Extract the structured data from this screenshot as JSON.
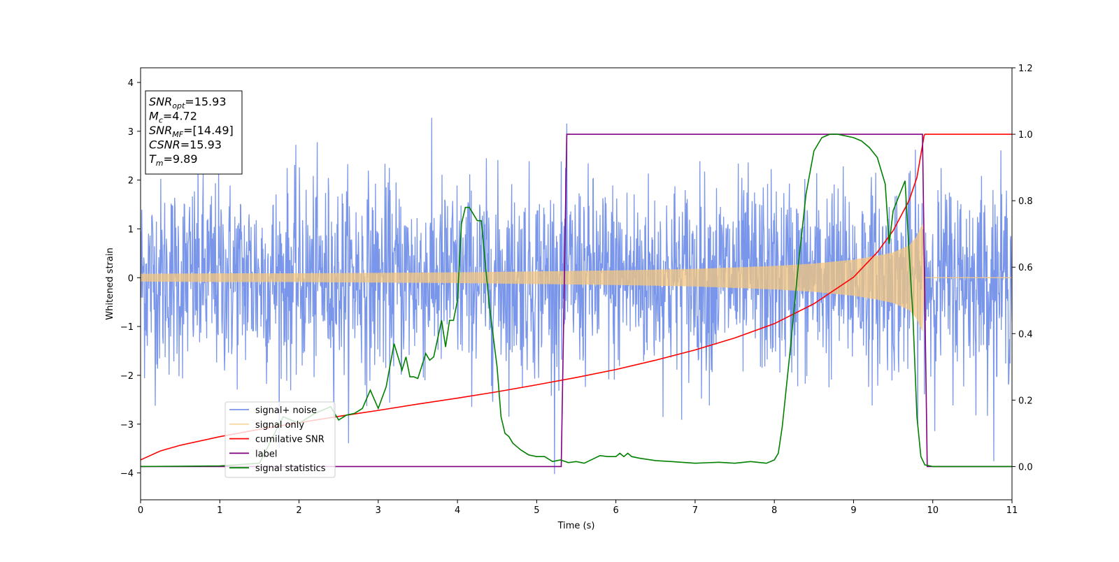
{
  "chart_data": {
    "type": "line",
    "xlabel": "Time (s)",
    "ylabel": "Whitened strain",
    "xlim": [
      0,
      11
    ],
    "ylim_left": [
      -4.55,
      4.3
    ],
    "ylim_right": [
      -0.1,
      1.2
    ],
    "x_ticks": [
      0,
      1,
      2,
      3,
      4,
      5,
      6,
      7,
      8,
      9,
      10,
      11
    ],
    "y_ticks_left": [
      -4,
      -3,
      -2,
      -1,
      0,
      1,
      2,
      3,
      4
    ],
    "y_ticks_left_labels": [
      "−4",
      "−3",
      "−2",
      "−1",
      "0",
      "1",
      "2",
      "3",
      "4"
    ],
    "y_ticks_right": [
      0.0,
      0.2,
      0.4,
      0.6,
      0.8,
      1.0,
      1.2
    ],
    "y_ticks_right_labels": [
      "0.0",
      "0.2",
      "0.4",
      "0.6",
      "0.8",
      "1.0",
      "1.2"
    ],
    "grid": false,
    "legend_placement": "lower-left",
    "annotation": {
      "lines": [
        {
          "name": "SNR",
          "sub": "opt",
          "value": "=15.93"
        },
        {
          "name": "M",
          "sub": "c",
          "value": "=4.72"
        },
        {
          "name": "SNR",
          "sub": "MF",
          "value": "=[14.49]"
        },
        {
          "name": "CSNR",
          "sub": "",
          "value": "=15.93"
        },
        {
          "name": "T",
          "sub": "m",
          "value": "=9.89"
        }
      ]
    },
    "series": [
      {
        "name": "signal+ noise",
        "axis": "left",
        "color": "#4169e1",
        "kind": "noise",
        "noise_sigma": 1.0,
        "x_range": [
          0,
          11
        ]
      },
      {
        "name": "signal only",
        "axis": "left",
        "color": "#f5c77e",
        "kind": "chirp",
        "envelope": {
          "x": [
            0,
            1,
            2,
            3,
            4,
            5,
            6,
            7,
            8,
            8.5,
            9,
            9.3,
            9.5,
            9.7,
            9.8,
            9.85,
            9.89,
            9.9,
            11
          ],
          "y": [
            0.08,
            0.09,
            0.09,
            0.1,
            0.11,
            0.13,
            0.15,
            0.18,
            0.24,
            0.29,
            0.37,
            0.45,
            0.52,
            0.66,
            0.85,
            1.05,
            1.15,
            0,
            0
          ]
        }
      },
      {
        "name": "cumilative SNR",
        "axis": "right",
        "color": "#ff0000",
        "x": [
          0,
          0.25,
          0.5,
          1,
          1.5,
          2,
          2.5,
          3,
          3.5,
          4,
          4.5,
          5,
          5.5,
          6,
          6.5,
          7,
          7.5,
          8,
          8.5,
          9,
          9.3,
          9.5,
          9.7,
          9.8,
          9.89,
          9.9,
          11
        ],
        "y": [
          0.02,
          0.047,
          0.064,
          0.09,
          0.112,
          0.132,
          0.151,
          0.169,
          0.188,
          0.206,
          0.225,
          0.246,
          0.268,
          0.292,
          0.32,
          0.351,
          0.387,
          0.43,
          0.49,
          0.57,
          0.645,
          0.71,
          0.8,
          0.87,
          0.995,
          1.0,
          1.0
        ]
      },
      {
        "name": "label",
        "axis": "right",
        "color": "#800080",
        "x": [
          0,
          5.31,
          5.38,
          9.87,
          9.93,
          11
        ],
        "y": [
          0,
          0,
          1,
          1,
          0,
          0
        ]
      },
      {
        "name": "signal statistics",
        "axis": "right",
        "color": "#008000",
        "x": [
          0,
          1.0,
          1.5,
          1.8,
          2.0,
          2.2,
          2.4,
          2.5,
          2.6,
          2.7,
          2.8,
          2.9,
          3.0,
          3.1,
          3.2,
          3.3,
          3.35,
          3.4,
          3.45,
          3.5,
          3.6,
          3.65,
          3.7,
          3.8,
          3.85,
          3.9,
          3.95,
          4.0,
          4.05,
          4.1,
          4.15,
          4.2,
          4.25,
          4.3,
          4.4,
          4.5,
          4.55,
          4.6,
          4.65,
          4.7,
          4.75,
          4.8,
          4.9,
          5.0,
          5.1,
          5.2,
          5.3,
          5.4,
          5.5,
          5.6,
          5.8,
          5.9,
          6.0,
          6.05,
          6.1,
          6.15,
          6.2,
          6.3,
          6.5,
          6.7,
          7.0,
          7.3,
          7.5,
          7.7,
          7.9,
          8.0,
          8.05,
          8.1,
          8.2,
          8.3,
          8.4,
          8.5,
          8.6,
          8.7,
          8.8,
          9.0,
          9.1,
          9.2,
          9.3,
          9.4,
          9.45,
          9.5,
          9.55,
          9.6,
          9.65,
          9.7,
          9.75,
          9.8,
          9.85,
          9.9,
          10.0,
          11
        ],
        "y": [
          0,
          0.002,
          0.01,
          0.15,
          0.13,
          0.16,
          0.18,
          0.14,
          0.155,
          0.16,
          0.175,
          0.23,
          0.175,
          0.24,
          0.37,
          0.29,
          0.33,
          0.27,
          0.27,
          0.265,
          0.34,
          0.32,
          0.33,
          0.44,
          0.36,
          0.44,
          0.44,
          0.5,
          0.73,
          0.78,
          0.78,
          0.76,
          0.74,
          0.74,
          0.49,
          0.3,
          0.15,
          0.1,
          0.09,
          0.07,
          0.06,
          0.05,
          0.035,
          0.03,
          0.03,
          0.015,
          0.02,
          0.012,
          0.015,
          0.01,
          0.033,
          0.03,
          0.03,
          0.04,
          0.03,
          0.04,
          0.03,
          0.025,
          0.018,
          0.015,
          0.01,
          0.013,
          0.01,
          0.015,
          0.01,
          0.02,
          0.04,
          0.12,
          0.35,
          0.6,
          0.82,
          0.95,
          0.99,
          1.0,
          1.0,
          0.99,
          0.98,
          0.96,
          0.93,
          0.85,
          0.67,
          0.77,
          0.8,
          0.83,
          0.86,
          0.65,
          0.45,
          0.15,
          0.03,
          0.005,
          0.0,
          0.0
        ]
      }
    ]
  }
}
